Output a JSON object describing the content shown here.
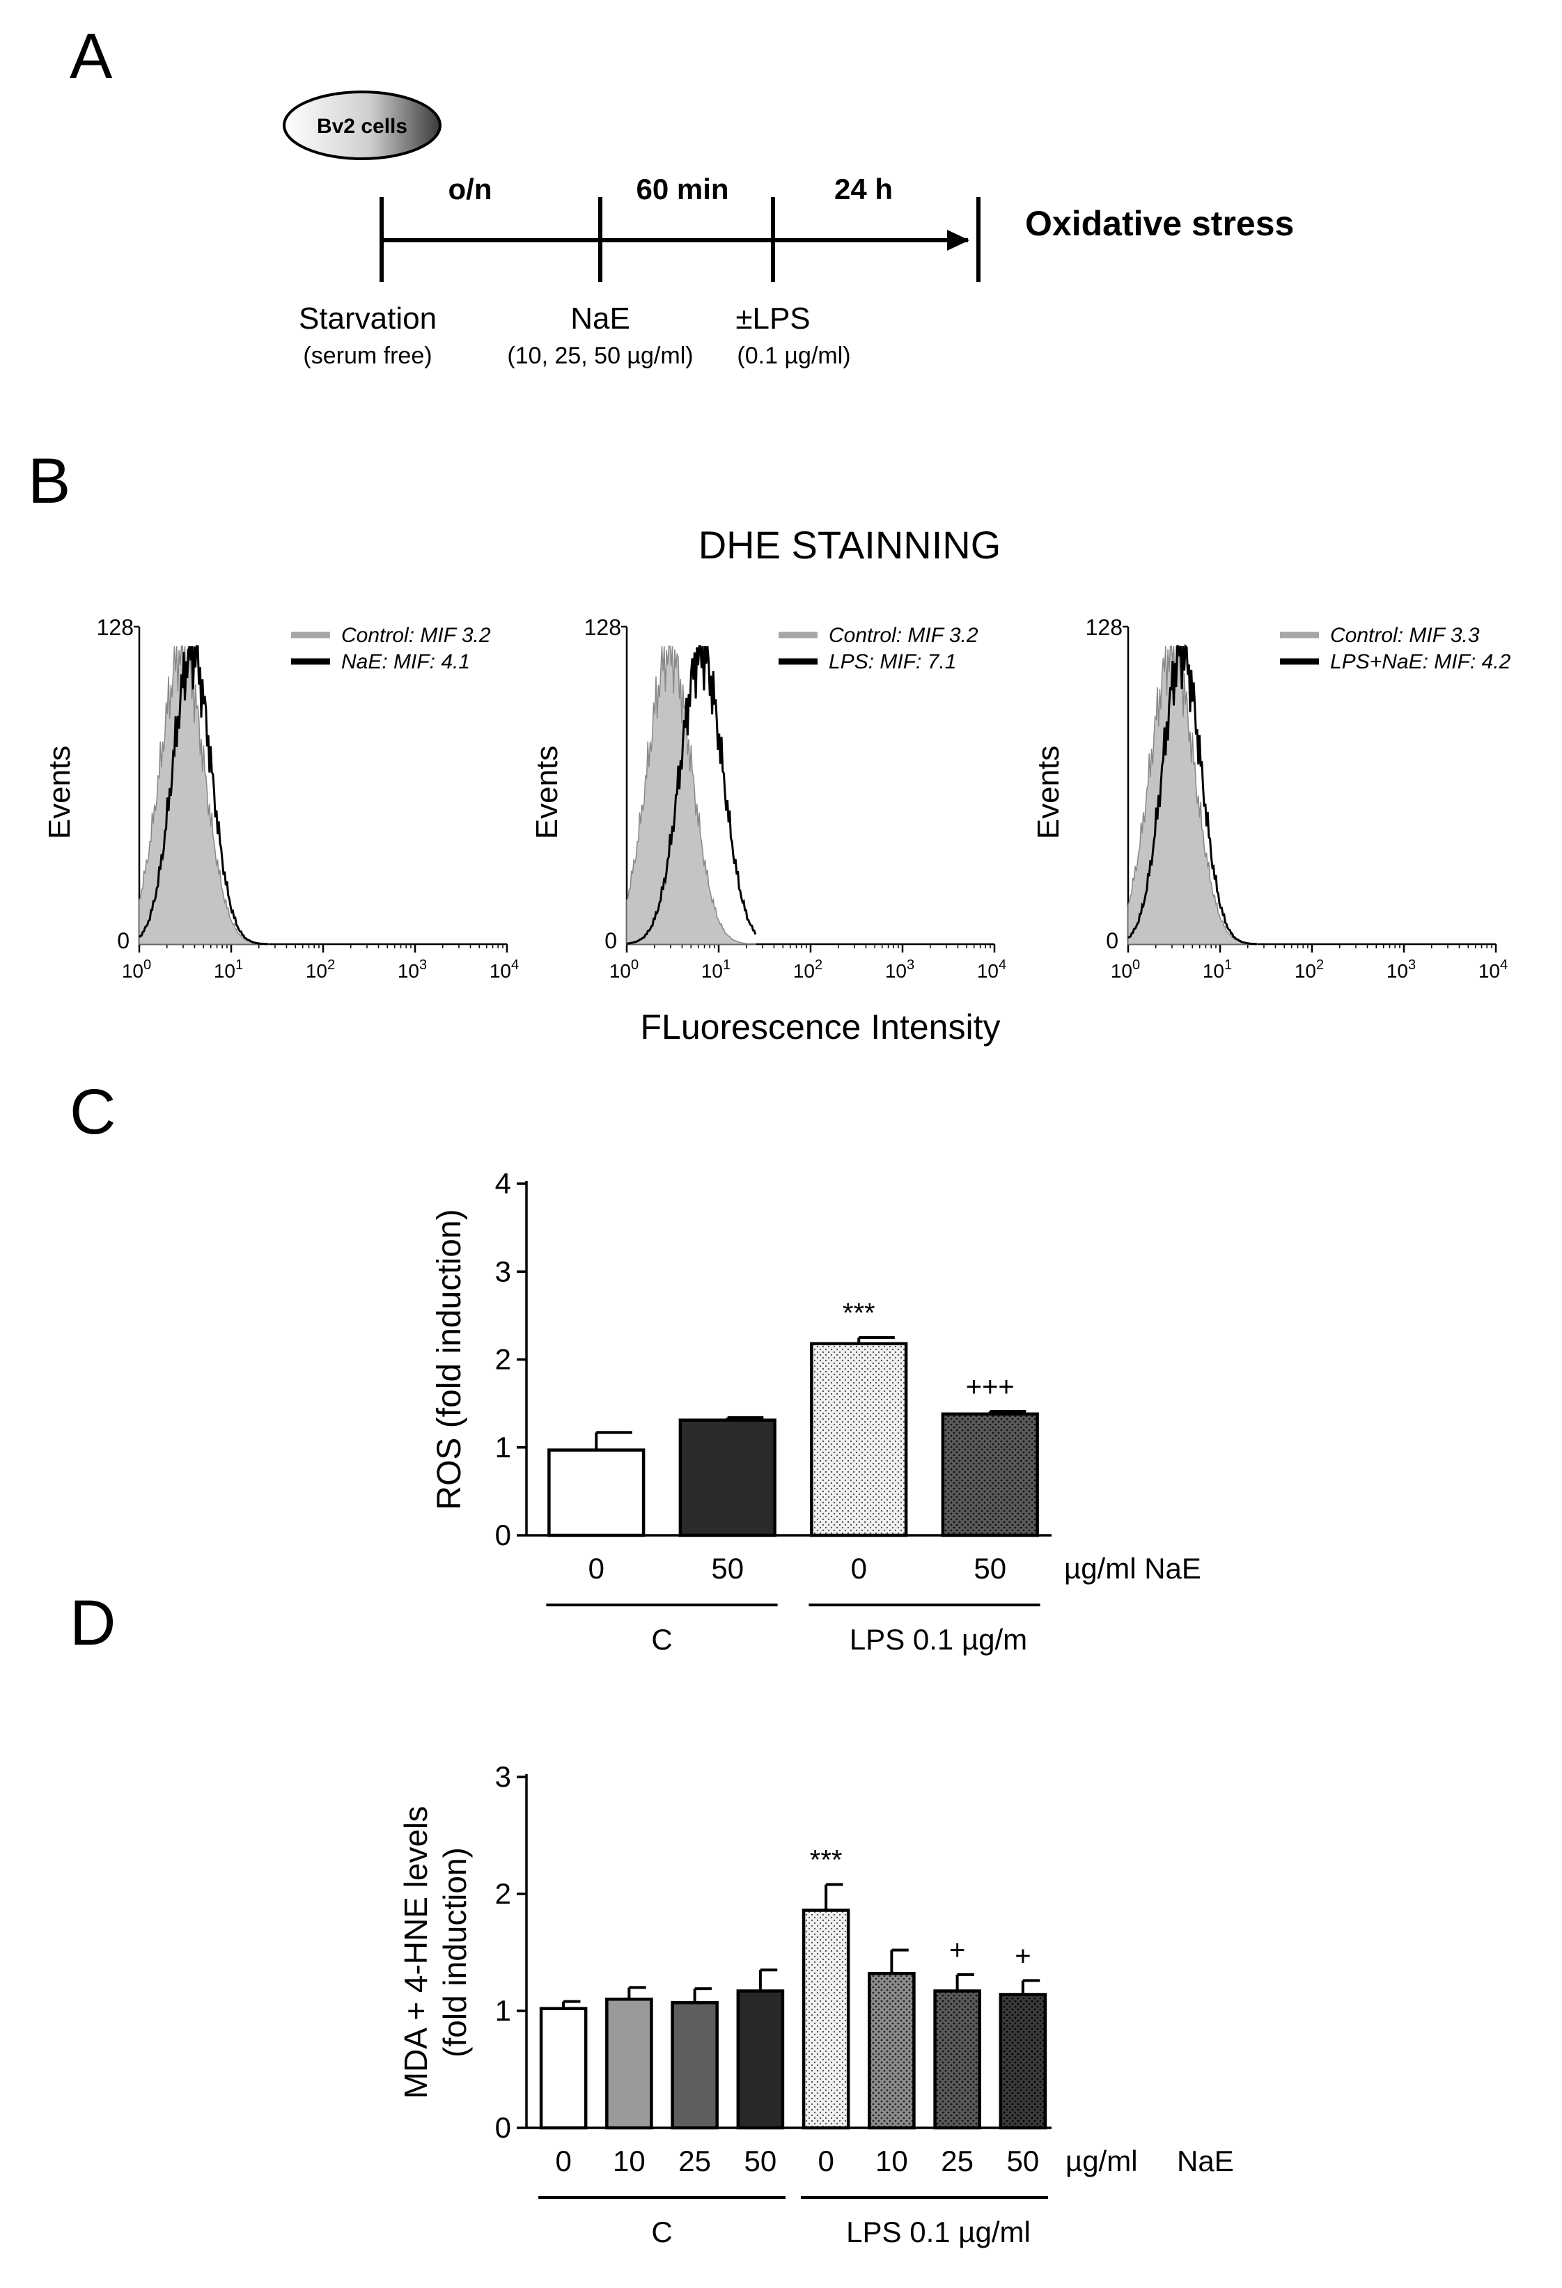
{
  "panels": {
    "a": "A",
    "b": "B",
    "c": "C",
    "d": "D"
  },
  "schematic": {
    "cell_label": "Bv2 cells",
    "periods": [
      "o/n",
      "60 min",
      "24 h"
    ],
    "outcome": "Oxidative stress",
    "steps": [
      {
        "name": "Starvation",
        "detail": "(serum free)"
      },
      {
        "name": "NaE",
        "detail": "(10, 25, 50 µg/ml)"
      },
      {
        "name": "±LPS",
        "detail": "(0.1 µg/ml)"
      }
    ]
  },
  "flow": {
    "title": "DHE STAINNING",
    "x_label": "FLuorescence Intensity",
    "y_label": "Events",
    "y_ticks": [
      "0",
      "128"
    ],
    "x_ticks": [
      {
        "base": "10",
        "exp": "0"
      },
      {
        "base": "10",
        "exp": "1"
      },
      {
        "base": "10",
        "exp": "2"
      },
      {
        "base": "10",
        "exp": "3"
      },
      {
        "base": "10",
        "exp": "4"
      }
    ],
    "colors": {
      "control_fill": "#c4c4c4",
      "control_legend": "#a6a6a6",
      "treated": "#000000"
    },
    "plots": [
      {
        "legend": [
          "Control: MIF 3.2",
          "NaE: MIF: 4.1"
        ],
        "control_mif": 3.2,
        "treated_mif": 4.1
      },
      {
        "legend": [
          "Control: MIF 3.2",
          "LPS: MIF: 7.1"
        ],
        "control_mif": 3.2,
        "treated_mif": 7.1
      },
      {
        "legend": [
          "Control: MIF 3.3",
          "LPS+NaE: MIF: 4.2"
        ],
        "control_mif": 3.3,
        "treated_mif": 4.2
      }
    ]
  },
  "chart_data": [
    {
      "type": "bar",
      "ylabel": "ROS  (fold induction)",
      "ylim": [
        0,
        4
      ],
      "yticks": [
        "0",
        "1",
        "2",
        "3",
        "4"
      ],
      "categories": [
        "0",
        "50",
        "0",
        "50"
      ],
      "values": [
        0.97,
        1.31,
        2.18,
        1.38
      ],
      "errors": [
        0.2,
        0.03,
        0.07,
        0.03
      ],
      "significance": [
        "",
        "",
        "***",
        "+++"
      ],
      "unit_label": "µg/ml NaE",
      "groups": [
        {
          "label": "C",
          "bars": 2
        },
        {
          "label": "LPS 0.1 µg/m",
          "bars": 2
        }
      ],
      "fills": [
        "white",
        "#2b2b2b",
        "dots-light",
        "dots-dark"
      ]
    },
    {
      "type": "bar",
      "ylabel": "MDA + 4-HNE levels",
      "ylabel2": "(fold induction)",
      "ylim": [
        0,
        3
      ],
      "yticks": [
        "0",
        "1",
        "2",
        "3"
      ],
      "categories": [
        "0",
        "10",
        "25",
        "50",
        "0",
        "10",
        "25",
        "50"
      ],
      "values": [
        1.02,
        1.1,
        1.07,
        1.17,
        1.86,
        1.32,
        1.17,
        1.14
      ],
      "errors": [
        0.06,
        0.1,
        0.12,
        0.18,
        0.22,
        0.2,
        0.14,
        0.12
      ],
      "significance": [
        "",
        "",
        "",
        "",
        "***",
        "",
        "+",
        "+"
      ],
      "unit_label": "µg/ml",
      "unit_label2": "NaE",
      "groups": [
        {
          "label": "C",
          "bars": 4
        },
        {
          "label": "LPS 0.1 µg/ml",
          "bars": 4
        }
      ],
      "fills": [
        "white",
        "#9a9a9a",
        "#5e5e5e",
        "#282828",
        "dots-light",
        "dots-mid",
        "dots-dark",
        "dots-darker"
      ]
    }
  ]
}
